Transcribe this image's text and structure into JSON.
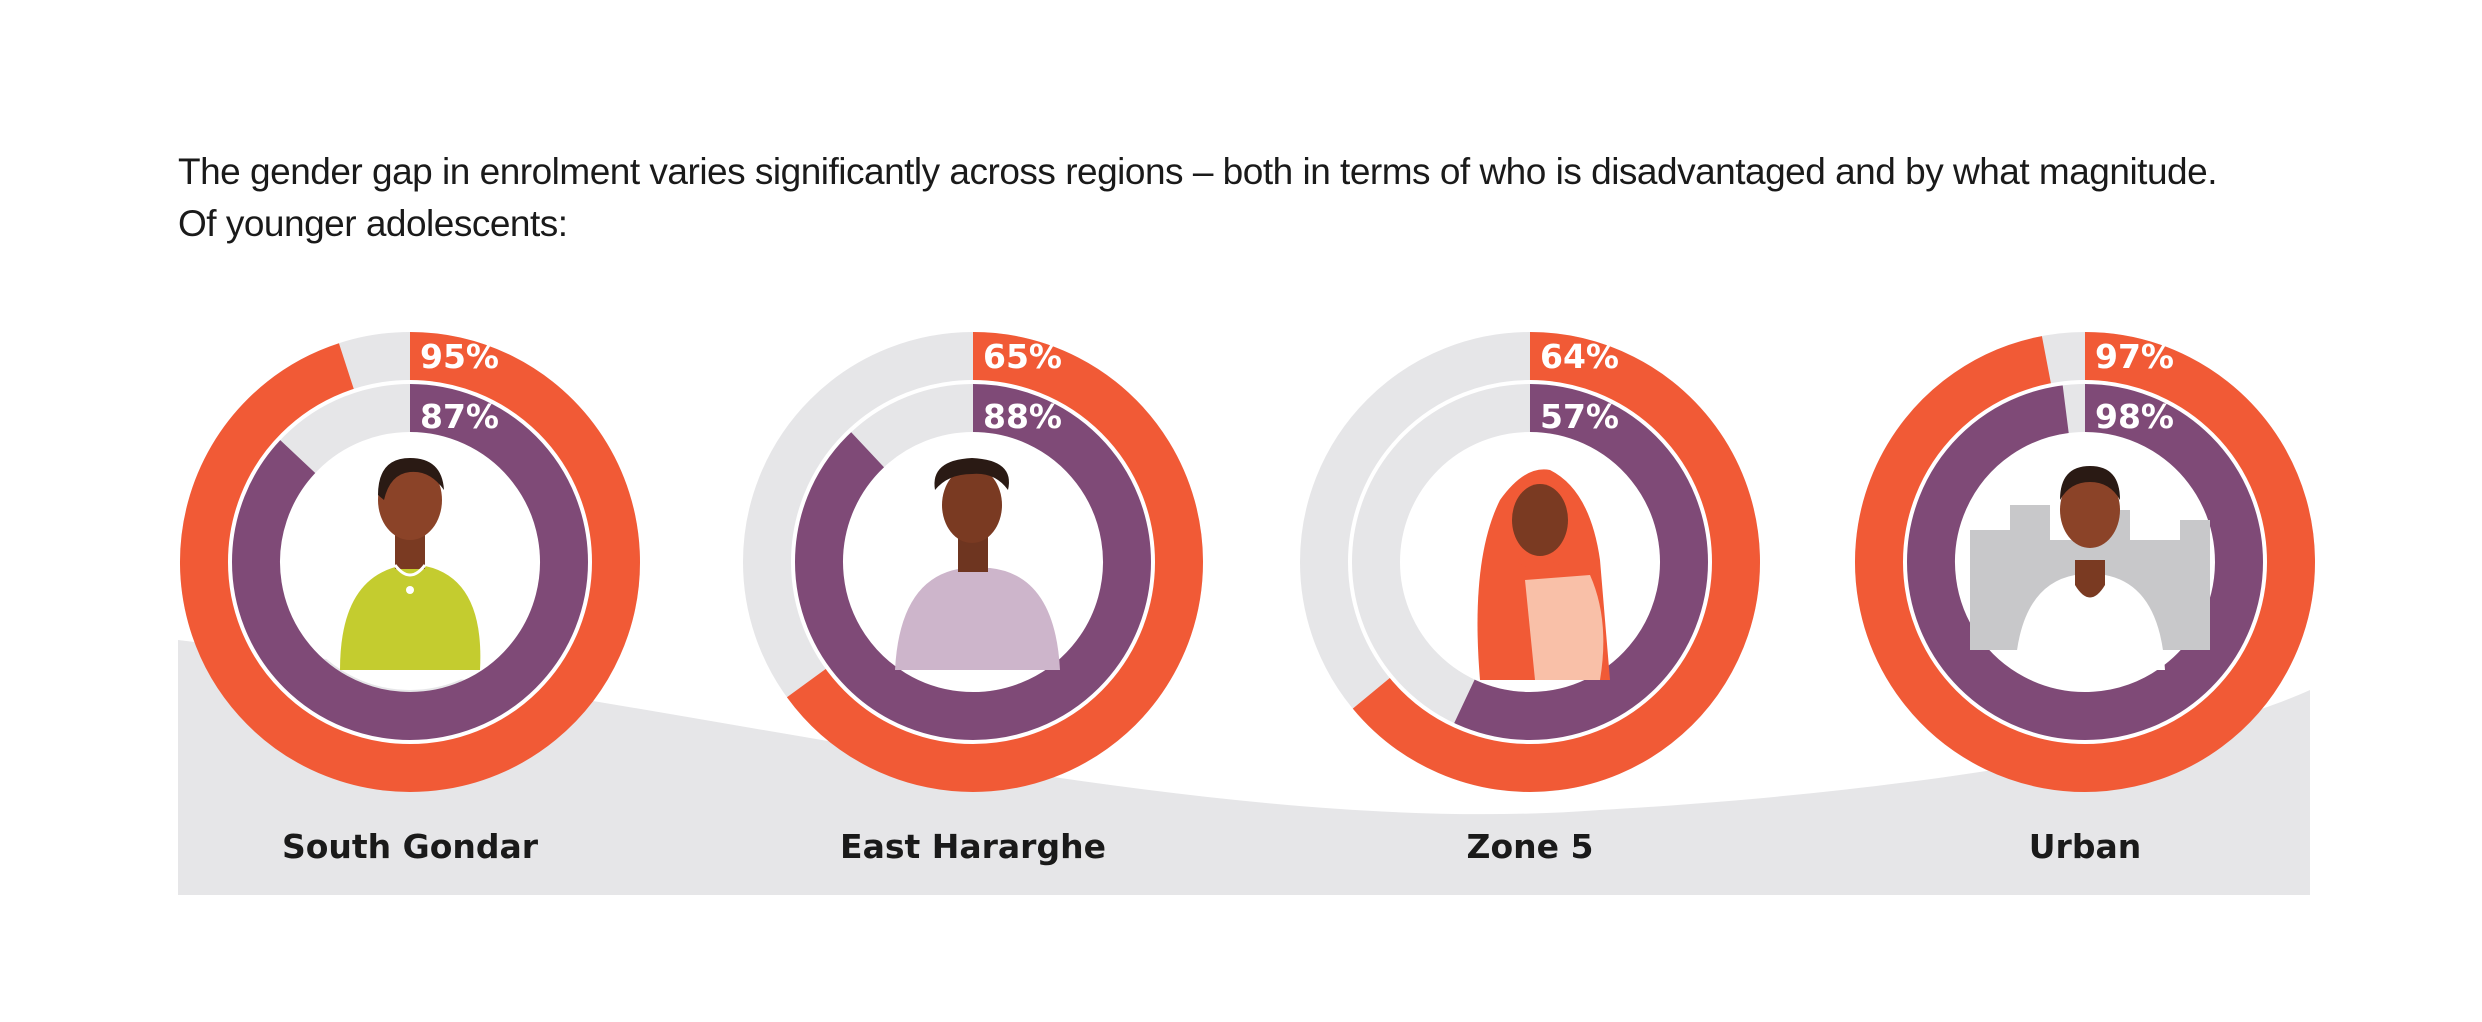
{
  "intro": {
    "line1": "The gender gap in enrolment varies significantly across regions – both in terms of who is disadvantaged and by what magnitude.",
    "line2": "Of younger adolescents:"
  },
  "colors": {
    "outer_ring": "#F15A36",
    "inner_ring": "#7F4A77",
    "track": "#E6E6E8",
    "background_band": "#E6E6E8"
  },
  "chart_data": {
    "type": "radial-bar",
    "series": [
      {
        "color": "#F15A36",
        "values": [
          95,
          65,
          64,
          97
        ]
      },
      {
        "color": "#7F4A77",
        "values": [
          87,
          88,
          57,
          98
        ]
      }
    ],
    "categories": [
      "South Gondar",
      "East Hararghe",
      "Zone 5",
      "Urban"
    ],
    "max": 100,
    "value_suffix": "%"
  }
}
